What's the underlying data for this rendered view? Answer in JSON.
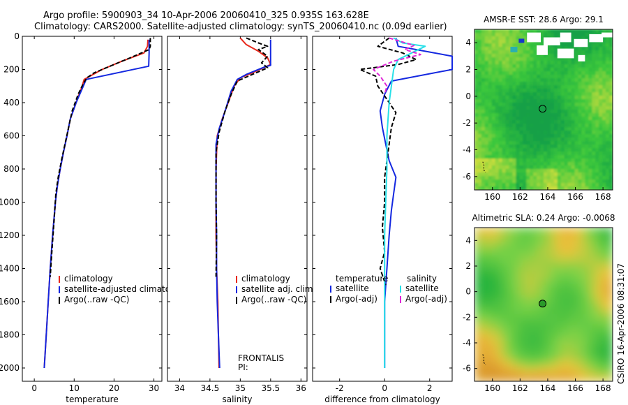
{
  "header": {
    "line1": "Argo profile:  5900903_34 10-Apr-2006 20060410_325 0.935S 163.628E",
    "line2": "Climatology: CARS2000. Satellite-adjusted climatology: synTS_20060410.nc (0.09d earlier)"
  },
  "side_stamp": "CSIRO 16-Apr-2006 08:31:07",
  "colors": {
    "climatology": "#e8281c",
    "satellite": "#1428e0",
    "argo": "#000000",
    "satellite_sal": "#28e0e8",
    "argo_sal": "#e028d8"
  },
  "chart_data": [
    {
      "type": "line",
      "id": "temperature",
      "xlabel": "temperature",
      "ylabel": "",
      "xlim": [
        -3,
        32
      ],
      "ylim": [
        0,
        2080
      ],
      "y_reversed": true,
      "xticks": [
        0,
        10,
        20,
        30
      ],
      "yticks": [
        0,
        200,
        400,
        600,
        800,
        1000,
        1200,
        1400,
        1600,
        1800,
        2000
      ],
      "legend": [
        "climatology",
        "satellite-adjusted climatology",
        "Argo(..raw -QC)"
      ],
      "series": [
        {
          "name": "climatology",
          "color": "#e8281c",
          "dash": "",
          "points": [
            [
              28.5,
              20
            ],
            [
              28.4,
              60
            ],
            [
              27.5,
              100
            ],
            [
              22,
              150
            ],
            [
              17,
              200
            ],
            [
              14,
              240
            ],
            [
              12.5,
              260
            ],
            [
              12,
              300
            ],
            [
              10.5,
              400
            ],
            [
              9,
              500
            ],
            [
              8.2,
              600
            ],
            [
              7.3,
              700
            ],
            [
              6.5,
              800
            ],
            [
              5.8,
              900
            ],
            [
              5.3,
              1000
            ],
            [
              4.6,
              1200
            ],
            [
              4,
              1400
            ],
            [
              3.5,
              1600
            ],
            [
              3,
              1800
            ],
            [
              2.5,
              2000
            ]
          ]
        },
        {
          "name": "satellite-adjusted climatology",
          "color": "#1428e0",
          "dash": "",
          "points": [
            [
              28.8,
              20
            ],
            [
              28.8,
              60
            ],
            [
              28.8,
              100
            ],
            [
              28.7,
              180
            ],
            [
              13,
              260
            ],
            [
              12.3,
              300
            ],
            [
              10.5,
              400
            ],
            [
              9,
              500
            ],
            [
              8.2,
              600
            ],
            [
              7.3,
              700
            ],
            [
              6.5,
              800
            ],
            [
              5.8,
              900
            ],
            [
              5.3,
              1000
            ],
            [
              4.6,
              1200
            ],
            [
              4,
              1400
            ],
            [
              3.5,
              1600
            ],
            [
              3,
              1800
            ],
            [
              2.5,
              2000
            ]
          ]
        },
        {
          "name": "Argo(..raw -QC)",
          "color": "#000000",
          "dash": "6,3",
          "points": [
            [
              29.1,
              10
            ],
            [
              29.1,
              60
            ],
            [
              28.8,
              80
            ],
            [
              24,
              130
            ],
            [
              19,
              180
            ],
            [
              15,
              220
            ],
            [
              13.2,
              250
            ],
            [
              12.4,
              280
            ],
            [
              11,
              350
            ],
            [
              9.5,
              450
            ],
            [
              8.6,
              550
            ],
            [
              7.7,
              650
            ],
            [
              6.8,
              750
            ],
            [
              6,
              850
            ],
            [
              5.4,
              950
            ],
            [
              5,
              1100
            ],
            [
              4.4,
              1300
            ],
            [
              4,
              1450
            ]
          ]
        }
      ]
    },
    {
      "type": "line",
      "id": "salinity",
      "xlabel": "salinity",
      "ylabel": "",
      "xlim": [
        33.8,
        36.1
      ],
      "ylim": [
        0,
        2080
      ],
      "y_reversed": true,
      "xticks": [
        34,
        34.5,
        35,
        35.5,
        36
      ],
      "yticks": [
        0,
        200,
        400,
        600,
        800,
        1000,
        1200,
        1400,
        1600,
        1800,
        2000
      ],
      "legend": [
        "climatology",
        "satellite adj. clim.",
        "Argo(..raw -QC)"
      ],
      "annotation": [
        "FRONTALIS",
        "PI:"
      ],
      "series": [
        {
          "name": "climatology",
          "color": "#e8281c",
          "dash": "",
          "points": [
            [
              35.0,
              10
            ],
            [
              35.1,
              50
            ],
            [
              35.3,
              90
            ],
            [
              35.45,
              130
            ],
            [
              35.5,
              170
            ],
            [
              35.2,
              220
            ],
            [
              35.0,
              250
            ],
            [
              34.9,
              300
            ],
            [
              34.85,
              350
            ],
            [
              34.8,
              400
            ],
            [
              34.7,
              500
            ],
            [
              34.62,
              600
            ],
            [
              34.6,
              800
            ],
            [
              34.6,
              1000
            ],
            [
              34.6,
              1200
            ],
            [
              34.61,
              1400
            ],
            [
              34.63,
              1600
            ],
            [
              34.64,
              1800
            ],
            [
              34.65,
              2000
            ]
          ]
        },
        {
          "name": "satellite adj. clim.",
          "color": "#1428e0",
          "dash": "",
          "points": [
            [
              35.5,
              20
            ],
            [
              35.5,
              100
            ],
            [
              35.5,
              175
            ],
            [
              35.4,
              185
            ],
            [
              35.1,
              230
            ],
            [
              34.95,
              260
            ],
            [
              34.85,
              330
            ],
            [
              34.75,
              450
            ],
            [
              34.65,
              560
            ],
            [
              34.6,
              650
            ],
            [
              34.6,
              800
            ],
            [
              34.6,
              1000
            ],
            [
              34.61,
              1200
            ],
            [
              34.61,
              1400
            ],
            [
              34.62,
              1600
            ],
            [
              34.64,
              1800
            ],
            [
              34.66,
              2000
            ]
          ]
        },
        {
          "name": "Argo(..raw -QC)",
          "color": "#000000",
          "dash": "6,3",
          "points": [
            [
              35.1,
              10
            ],
            [
              35.3,
              40
            ],
            [
              35.45,
              60
            ],
            [
              35.3,
              80
            ],
            [
              35.45,
              120
            ],
            [
              35.35,
              160
            ],
            [
              35.45,
              190
            ],
            [
              35.2,
              230
            ],
            [
              34.95,
              270
            ],
            [
              34.85,
              350
            ],
            [
              34.75,
              450
            ],
            [
              34.65,
              580
            ],
            [
              34.6,
              700
            ],
            [
              34.6,
              850
            ],
            [
              34.6,
              1000
            ],
            [
              34.61,
              1200
            ],
            [
              34.6,
              1450
            ]
          ]
        }
      ]
    },
    {
      "type": "line",
      "id": "difference",
      "xlabel": "difference from climatology",
      "ylabel": "",
      "xlim": [
        -3.2,
        3.0
      ],
      "ylim": [
        0,
        2080
      ],
      "y_reversed": true,
      "xticks": [
        -2,
        0,
        2
      ],
      "yticks": [
        0,
        200,
        400,
        600,
        800,
        1000,
        1200,
        1400,
        1600,
        1800,
        2000
      ],
      "legend_left_title": "temperature",
      "legend_left": [
        "satellite",
        "Argo(-adj)"
      ],
      "legend_right_title": "salinity",
      "legend_right": [
        "satellite",
        "Argo(-adj)"
      ],
      "series": [
        {
          "name": "temperature satellite",
          "color": "#1428e0",
          "dash": "",
          "points": [
            [
              0.5,
              10
            ],
            [
              0.6,
              60
            ],
            [
              1.4,
              80
            ],
            [
              3.0,
              120
            ],
            [
              3.0,
              200
            ],
            [
              0.3,
              270
            ],
            [
              0.0,
              350
            ],
            [
              -0.2,
              450
            ],
            [
              -0.1,
              550
            ],
            [
              0.05,
              650
            ],
            [
              0.2,
              750
            ],
            [
              0.5,
              850
            ],
            [
              0.4,
              950
            ],
            [
              0.3,
              1050
            ],
            [
              0.2,
              1200
            ],
            [
              0.1,
              1400
            ],
            [
              0,
              1600
            ],
            [
              0,
              1800
            ],
            [
              0,
              2000
            ]
          ]
        },
        {
          "name": "temperature Argo(-adj)",
          "color": "#000000",
          "dash": "6,3",
          "points": [
            [
              0.2,
              10
            ],
            [
              -0.3,
              60
            ],
            [
              0.8,
              100
            ],
            [
              1.4,
              140
            ],
            [
              0.6,
              170
            ],
            [
              -1.1,
              200
            ],
            [
              -0.4,
              240
            ],
            [
              -0.3,
              300
            ],
            [
              0.1,
              380
            ],
            [
              0.5,
              460
            ],
            [
              0.3,
              550
            ],
            [
              0.2,
              650
            ],
            [
              0.1,
              750
            ],
            [
              0,
              850
            ],
            [
              0,
              1000
            ],
            [
              -0.1,
              1150
            ],
            [
              0,
              1300
            ],
            [
              -0.2,
              1400
            ],
            [
              0.05,
              1500
            ]
          ]
        },
        {
          "name": "salinity satellite",
          "color": "#28e0e8",
          "dash": "",
          "points": [
            [
              0.4,
              10
            ],
            [
              0.8,
              40
            ],
            [
              1.8,
              60
            ],
            [
              1.2,
              100
            ],
            [
              0.6,
              140
            ],
            [
              0.4,
              200
            ],
            [
              0.3,
              300
            ],
            [
              0.2,
              400
            ],
            [
              0.1,
              600
            ],
            [
              0.1,
              800
            ],
            [
              0.05,
              1000
            ],
            [
              0,
              1200
            ],
            [
              0,
              1400
            ],
            [
              0,
              1600
            ],
            [
              0,
              1800
            ],
            [
              0,
              2000
            ]
          ]
        },
        {
          "name": "salinity Argo(-adj)",
          "color": "#e028d8",
          "dash": "6,3",
          "points": [
            [
              0.2,
              10
            ],
            [
              1.3,
              55
            ],
            [
              0.9,
              80
            ],
            [
              1.6,
              110
            ],
            [
              0.4,
              150
            ],
            [
              -0.5,
              200
            ],
            [
              -0.2,
              240
            ],
            [
              0.1,
              300
            ],
            [
              0,
              350
            ]
          ]
        }
      ]
    },
    {
      "type": "heatmap",
      "id": "sst_map",
      "title": "AMSR-E SST: 28.6 Argo: 29.1",
      "xlim": [
        158.7,
        168.7
      ],
      "ylim": [
        -7.0,
        5.0
      ],
      "xticks": [
        160,
        162,
        164,
        166,
        168
      ],
      "yticks": [
        -6,
        -4,
        -2,
        0,
        2,
        4
      ],
      "marker": {
        "lon": 163.628,
        "lat": -0.935
      }
    },
    {
      "type": "heatmap",
      "id": "sla_map",
      "title": "Altimetric SLA: 0.24 Argo: -0.0068",
      "xlim": [
        158.7,
        168.7
      ],
      "ylim": [
        -7.0,
        5.0
      ],
      "xticks": [
        160,
        162,
        164,
        166,
        168
      ],
      "yticks": [
        -6,
        -4,
        -2,
        0,
        2,
        4
      ],
      "marker": {
        "lon": 163.628,
        "lat": -0.935
      }
    }
  ]
}
